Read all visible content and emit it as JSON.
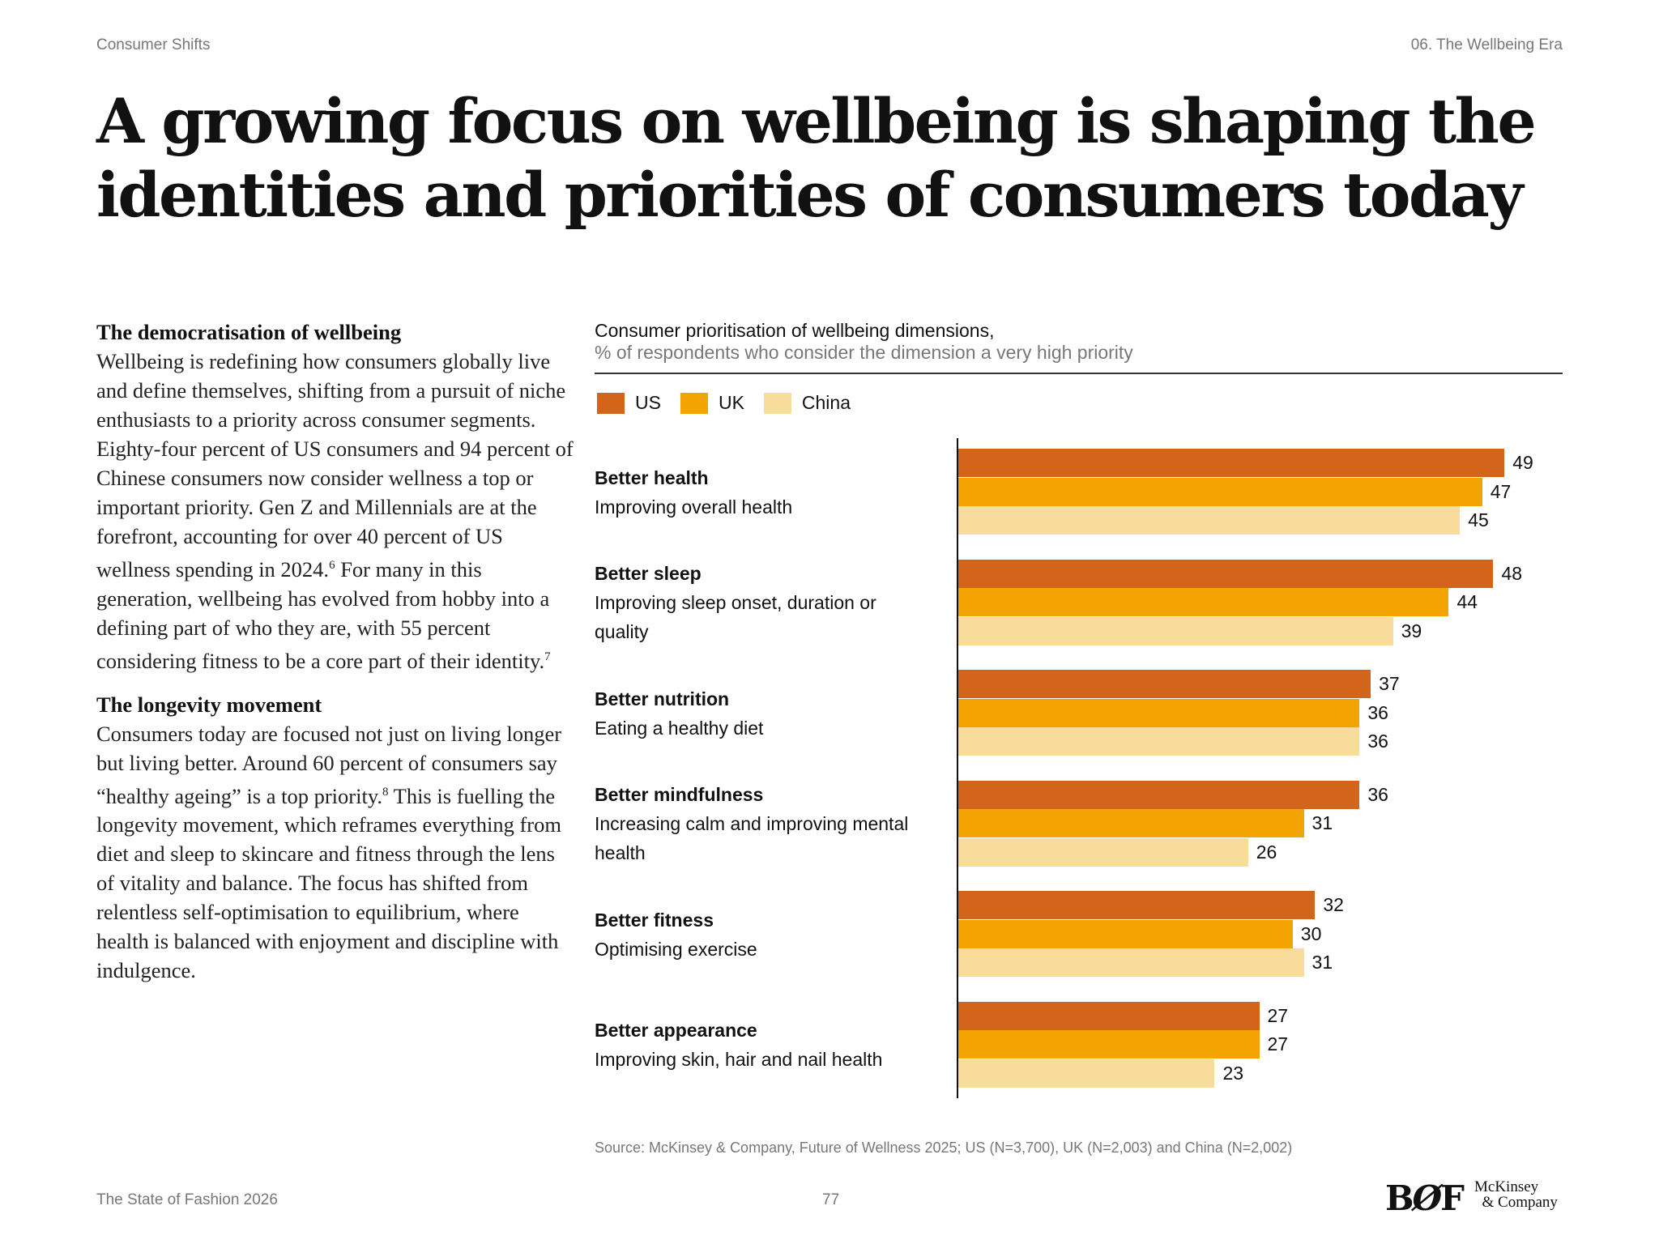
{
  "header": {
    "section": "Consumer Shifts",
    "chapter": "06. The Wellbeing Era"
  },
  "title": "A growing focus on wellbeing is shaping the identities and priorities of consumers today",
  "body": {
    "sections": [
      {
        "heading": "The democratisation of wellbeing",
        "text": "Wellbeing is redefining how consumers globally live and define themselves, shifting from a pursuit of niche enthusiasts to a priority across consumer segments. Eighty-four percent of US consumers and 94 percent of Chinese consumers now consider wellness a top or important priority. Gen Z and Millennials are at the forefront, accounting for over 40 percent of US wellness spending in 2024.",
        "ref1": "6",
        "text2": " For many in this generation, wellbeing has evolved from hobby into a defining part of who they are, with 55 percent considering fitness to be a core part of their identity.",
        "ref2": "7"
      },
      {
        "heading": "The longevity movement",
        "text": "Consumers today are focused not just on living longer but living better. Around 60 percent of consumers say “healthy ageing” is a top priority.",
        "ref1": "8",
        "text2": " This is fuelling the longevity movement, which reframes everything from diet and sleep to skincare and fitness through the lens of vitality and balance. The focus has shifted from relentless self-optimisation to equilibrium, where health is balanced with enjoyment and discipline with indulgence."
      }
    ]
  },
  "chart_data": {
    "type": "bar",
    "orientation": "horizontal",
    "title": "Consumer prioritisation of wellbeing dimensions,",
    "subtitle": "% of respondents who consider the dimension a very high priority",
    "categories": [
      {
        "label": "Better health",
        "sublabel": "Improving overall health"
      },
      {
        "label": "Better sleep",
        "sublabel": "Improving sleep onset, duration or quality"
      },
      {
        "label": "Better nutrition",
        "sublabel": "Eating a healthy diet"
      },
      {
        "label": "Better mindfulness",
        "sublabel": "Increasing calm and improving mental health"
      },
      {
        "label": "Better fitness",
        "sublabel": "Optimising exercise"
      },
      {
        "label": "Better appearance",
        "sublabel": "Improving skin, hair and nail health"
      }
    ],
    "series": [
      {
        "name": "US",
        "color": "#D2651A",
        "values": [
          49,
          48,
          37,
          36,
          32,
          27
        ]
      },
      {
        "name": "UK",
        "color": "#F3A403",
        "values": [
          47,
          44,
          36,
          31,
          30,
          27
        ]
      },
      {
        "name": "China",
        "color": "#F8DC9C",
        "values": [
          45,
          39,
          36,
          26,
          31,
          23
        ]
      }
    ],
    "legend": "top-left",
    "grid": false,
    "source": "Source: McKinsey & Company, Future of Wellness 2025; US (N=3,700), UK (N=2,003) and China (N=2,002)"
  },
  "footer": {
    "publication": "The State of Fashion 2026",
    "page": "77",
    "logo_bof": "BOF",
    "logo_mckinsey": "McKinsey & Company"
  }
}
